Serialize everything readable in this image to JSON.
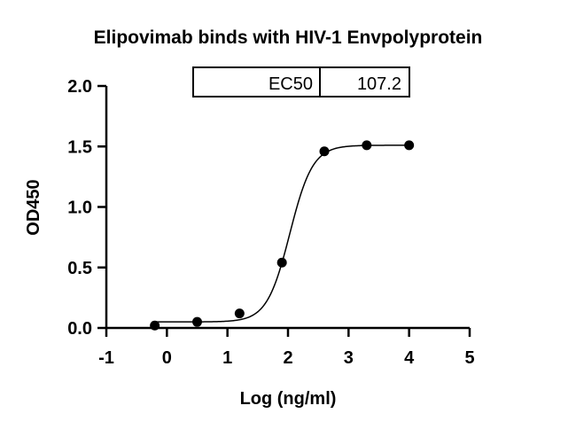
{
  "chart_data": {
    "type": "scatter",
    "title": "Elipovimab binds with HIV-1 Envpolyprotein",
    "xlabel": "Log (ng/ml)",
    "ylabel": "OD450",
    "xlim": [
      -1,
      5
    ],
    "ylim": [
      0,
      2.0
    ],
    "x_ticks": [
      "-1",
      "0",
      "1",
      "2",
      "3",
      "4",
      "5"
    ],
    "y_ticks": [
      "0.0",
      "0.5",
      "1.0",
      "1.5",
      "2.0"
    ],
    "grid": false,
    "legend": null,
    "series": [
      {
        "points": [
          {
            "x": -0.2,
            "y": 0.02
          },
          {
            "x": 0.5,
            "y": 0.05
          },
          {
            "x": 1.2,
            "y": 0.12
          },
          {
            "x": 1.9,
            "y": 0.54
          },
          {
            "x": 2.6,
            "y": 1.46
          },
          {
            "x": 3.3,
            "y": 1.51
          },
          {
            "x": 4.0,
            "y": 1.51
          }
        ]
      }
    ],
    "fit_curve": {
      "model": "4PL",
      "bottom": 0.05,
      "top": 1.51,
      "log_ec50": 2.03,
      "hill_slope": 2.3,
      "x_range": [
        -0.2,
        4.0
      ]
    },
    "annotation_table": {
      "rows": [
        {
          "label": "EC50",
          "value": "107.2"
        }
      ]
    },
    "colors": {
      "points": "#000000",
      "curve": "#000000",
      "axes": "#000000"
    }
  }
}
